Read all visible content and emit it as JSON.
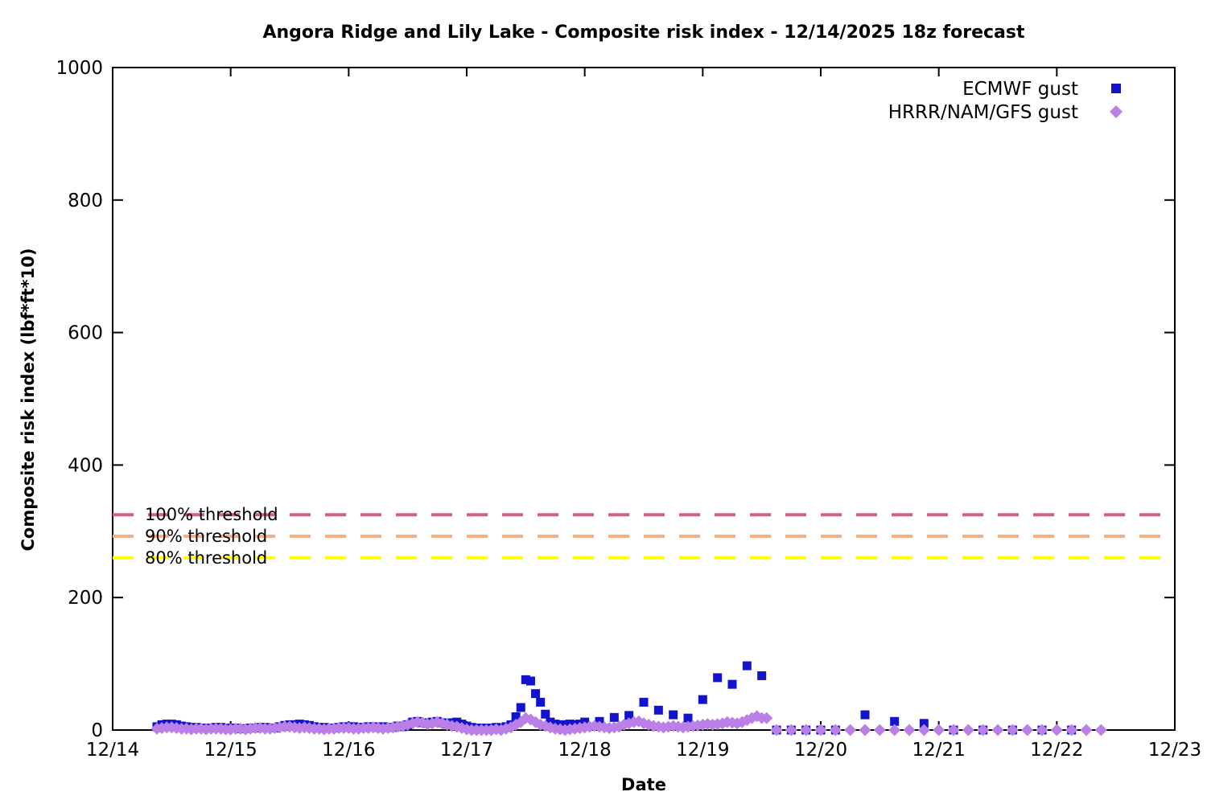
{
  "title": "Angora Ridge and Lily Lake - Composite risk index - 12/14/2025 18z forecast",
  "axes": {
    "x": {
      "label": "Date",
      "tick_labels": [
        "12/14",
        "12/15",
        "12/16",
        "12/17",
        "12/18",
        "12/19",
        "12/20",
        "12/21",
        "12/22",
        "12/23"
      ]
    },
    "y": {
      "label": "Composite risk index (lbf*ft*10)",
      "tick_labels": [
        "0",
        "200",
        "400",
        "600",
        "800",
        "1000"
      ]
    }
  },
  "legend": {
    "position": "top-right-inside",
    "entries": [
      {
        "label": "ECMWF gust",
        "marker": "square",
        "color": "#1313cd"
      },
      {
        "label": "HRRR/NAM/GFS gust",
        "marker": "diamond",
        "color": "#bb80e8"
      }
    ]
  },
  "chart_data": {
    "type": "scatter",
    "title": "Angora Ridge and Lily Lake - Composite risk index - 12/14/2025 18z forecast",
    "xlabel": "Date",
    "ylabel": "Composite risk index (lbf*ft*10)",
    "x_axis_days": [
      "12/14",
      "12/15",
      "12/16",
      "12/17",
      "12/18",
      "12/19",
      "12/20",
      "12/21",
      "12/22",
      "12/23"
    ],
    "x_unit": "hours after 12/14 00:00 (plotted at day = hour/24)",
    "xlim_days": [
      0,
      9
    ],
    "ylim": [
      0,
      1000
    ],
    "y_ticks": [
      0,
      200,
      400,
      600,
      800,
      1000
    ],
    "grid": false,
    "thresholds": [
      {
        "label": "100% threshold",
        "value": 325,
        "color": "#d2637e",
        "style": "dashed"
      },
      {
        "label": "90% threshold",
        "value": 292.5,
        "color": "#f6b183",
        "style": "dashed"
      },
      {
        "label": "80% threshold",
        "value": 260,
        "color": "#ffff00",
        "style": "dashed"
      }
    ],
    "series": [
      {
        "name": "ECMWF gust",
        "marker": "square",
        "color": "#1313cd",
        "segments": [
          {
            "start_hour": 9,
            "step_hours": 1,
            "values": [
              5,
              8,
              9,
              9,
              8,
              6,
              5,
              4,
              4,
              3,
              3,
              3,
              4,
              4,
              3,
              3,
              3,
              2,
              2,
              3,
              3,
              4,
              4,
              3,
              3,
              5,
              7,
              8,
              8,
              9,
              8,
              7,
              5,
              4,
              4,
              3,
              3,
              4,
              5,
              5,
              5,
              4,
              4,
              5,
              5,
              4,
              5,
              4,
              4,
              6,
              5,
              8,
              12,
              13,
              11,
              10,
              12,
              13,
              11,
              9,
              11,
              12,
              9,
              6,
              4,
              3,
              3,
              3,
              3,
              4,
              3,
              5,
              8,
              20,
              34,
              76,
              74,
              55,
              42,
              24,
              12,
              9,
              8,
              8,
              9,
              8,
              9,
              12
            ]
          },
          {
            "start_hour": 99,
            "step_hours": 3,
            "values": [
              13,
              19,
              22,
              42,
              30,
              23,
              18,
              46,
              79,
              69,
              97,
              82
            ]
          },
          {
            "start_hour": 135,
            "step_hours": 3,
            "values": [
              0,
              0,
              0,
              0,
              0
            ]
          },
          {
            "start_hour": 153,
            "step_hours": 6,
            "values": [
              23,
              13,
              10
            ]
          },
          {
            "start_hour": 171,
            "step_hours": 6,
            "values": [
              0,
              0,
              0,
              0,
              0
            ]
          }
        ]
      },
      {
        "name": "HRRR/NAM/GFS gust",
        "marker": "diamond",
        "color": "#bb80e8",
        "segments": [
          {
            "start_hour": 9,
            "step_hours": 1,
            "values": [
              2,
              3,
              4,
              4,
              3,
              2,
              2,
              1,
              2,
              2,
              1,
              2,
              2,
              2,
              1,
              1,
              2,
              2,
              1,
              2,
              3,
              3,
              2,
              2,
              3,
              4,
              5,
              5,
              4,
              3,
              4,
              3,
              2,
              2,
              1,
              2,
              2,
              3,
              3,
              3,
              2,
              2,
              3,
              3,
              4,
              3,
              2,
              3,
              4,
              5,
              6,
              8,
              10,
              12,
              11,
              9,
              10,
              12,
              10,
              8,
              6,
              5,
              3,
              1,
              0,
              0,
              0,
              0,
              0,
              1,
              0,
              2,
              4,
              8,
              12,
              18,
              16,
              12,
              8,
              6,
              4,
              2,
              1,
              0,
              1,
              2,
              3,
              4,
              5,
              6,
              5,
              4,
              3,
              4,
              5,
              8,
              10,
              12,
              13,
              10,
              8,
              6,
              5,
              4,
              5,
              6,
              5,
              4,
              5,
              6,
              7,
              8,
              9,
              8,
              9,
              10,
              12,
              11,
              10,
              12,
              15,
              18,
              21,
              18,
              18
            ]
          },
          {
            "start_hour": 135,
            "step_hours": 3,
            "values": [
              0,
              0,
              0,
              0,
              0,
              0,
              0,
              0,
              0,
              0,
              0,
              0,
              0,
              0,
              0,
              0,
              0,
              0,
              0,
              0,
              0,
              0,
              0
            ]
          }
        ]
      }
    ]
  }
}
